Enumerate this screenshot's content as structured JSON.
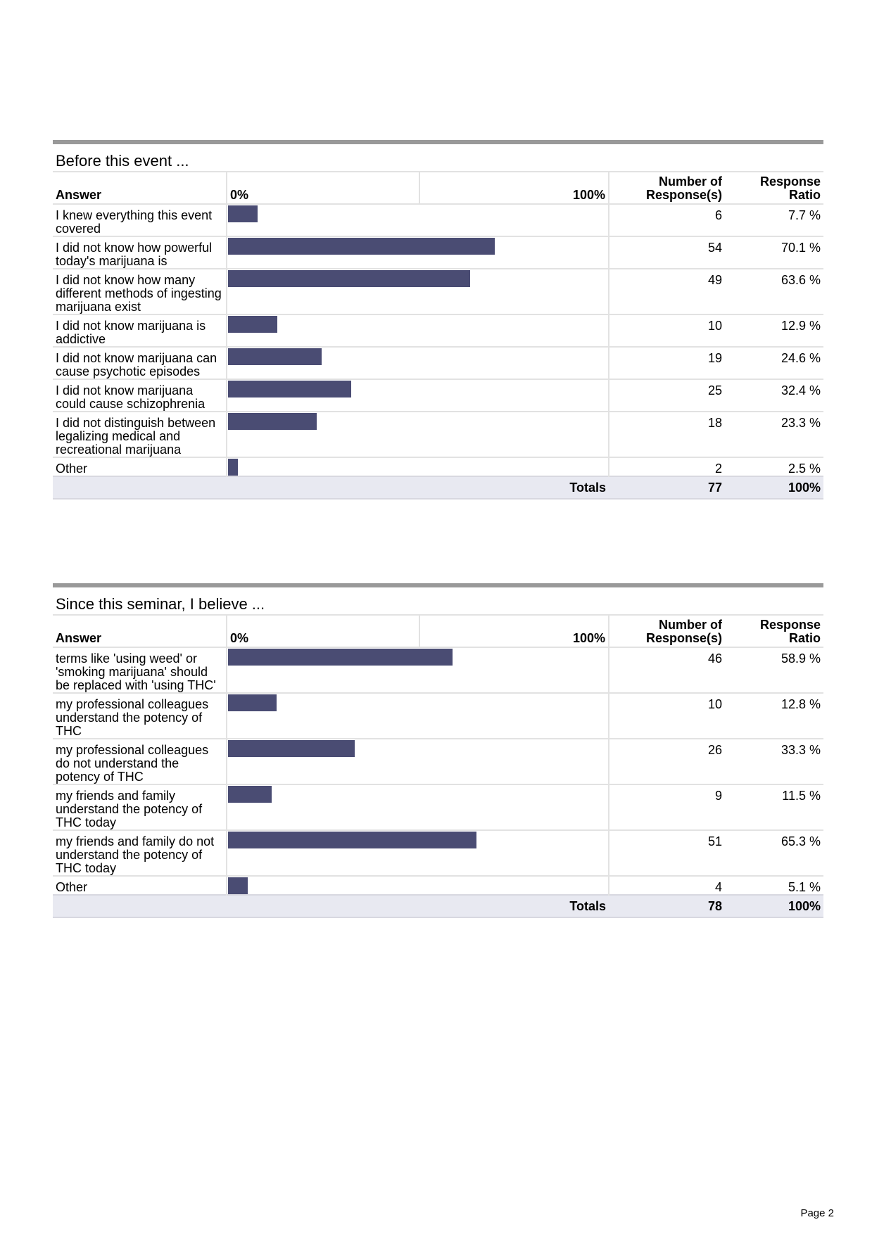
{
  "page_label": "Page 2",
  "chart_data": [
    {
      "type": "bar",
      "title": "Before this event ...",
      "headers": {
        "answer": "Answer",
        "axis_min": "0%",
        "axis_max": "100%",
        "number": "Number of Response(s)",
        "ratio": "Response Ratio"
      },
      "categories": [
        "I knew everything this event covered",
        "I did not know how powerful today's marijuana is",
        "I did not know how many different methods of ingesting marijuana exist",
        "I did not know marijuana is addictive",
        "I did not know marijuana can cause psychotic episodes",
        "I did not know marijuana could cause schizophrenia",
        "I did not distinguish between legalizing medical and recreational marijuana",
        "Other"
      ],
      "counts": [
        6,
        54,
        49,
        10,
        19,
        25,
        18,
        2
      ],
      "ratios": [
        7.7,
        70.1,
        63.6,
        12.9,
        24.6,
        32.4,
        23.3,
        2.5
      ],
      "ratio_labels": [
        "7.7 %",
        "70.1 %",
        "63.6 %",
        "12.9 %",
        "24.6 %",
        "32.4 %",
        "23.3 %",
        "2.5 %"
      ],
      "xlim": [
        0,
        100
      ],
      "totals_label": "Totals",
      "total_count": "77",
      "total_ratio": "100%"
    },
    {
      "type": "bar",
      "title": "Since this seminar, I believe ...",
      "headers": {
        "answer": "Answer",
        "axis_min": "0%",
        "axis_max": "100%",
        "number": "Number of Response(s)",
        "ratio": "Response Ratio"
      },
      "categories": [
        "terms like 'using weed' or 'smoking marijuana' should be replaced with 'using THC'",
        "my professional colleagues understand the potency of THC",
        "my professional colleagues do not understand the potency of THC",
        "my friends and family understand the potency of THC today",
        "my friends and family do not understand the potency of THC today",
        "Other"
      ],
      "counts": [
        46,
        10,
        26,
        9,
        51,
        4
      ],
      "ratios": [
        58.9,
        12.8,
        33.3,
        11.5,
        65.3,
        5.1
      ],
      "ratio_labels": [
        "58.9 %",
        "12.8 %",
        "33.3 %",
        "11.5 %",
        "65.3 %",
        "5.1 %"
      ],
      "xlim": [
        0,
        100
      ],
      "totals_label": "Totals",
      "total_count": "78",
      "total_ratio": "100%",
      "colors": {
        "bar": "#4a4c73"
      }
    }
  ]
}
